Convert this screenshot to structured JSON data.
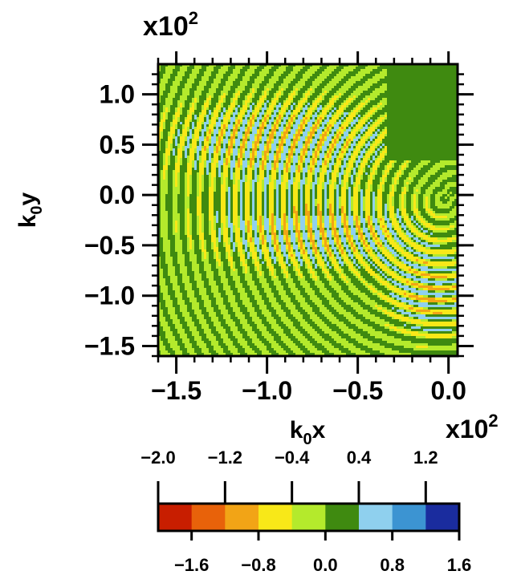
{
  "chart_data": {
    "type": "heatmap",
    "x_multiplier": "x10",
    "x_multiplier_exp": "2",
    "y_multiplier": "x10",
    "y_multiplier_exp": "2",
    "x_axis": {
      "label_main": "k",
      "label_sub": "0",
      "label_tail": "x",
      "range": [
        -1.6,
        0.05
      ],
      "ticks": [
        -1.5,
        -1.0,
        -0.5,
        0.0
      ],
      "tick_labels": [
        "−1.5",
        "−1.0",
        "−0.5",
        "0.0"
      ]
    },
    "y_axis": {
      "label_main": "k",
      "label_sub": "0",
      "label_tail": "y",
      "range": [
        -1.6,
        1.3
      ],
      "ticks": [
        1.0,
        0.5,
        0.0,
        -0.5,
        -1.0,
        -1.5
      ],
      "tick_labels": [
        "1.0",
        "0.5",
        "0.0",
        "−0.5",
        "−1.0",
        "−1.5"
      ]
    },
    "colorbar": {
      "levels": [
        -2.0,
        -1.6,
        -1.2,
        -0.8,
        -0.4,
        0.0,
        0.4,
        0.8,
        1.2,
        1.6
      ],
      "colors": [
        "#c81e00",
        "#e8620a",
        "#f2a416",
        "#f8e818",
        "#b4ea2c",
        "#3f8a10",
        "#8fd0ee",
        "#3c94d2",
        "#1a2c9e"
      ],
      "top_labels": [
        "−2.0",
        "−1.2",
        "−0.4",
        "0.4",
        "1.2"
      ],
      "bottom_labels": [
        "−1.6",
        "−0.8",
        "0.0",
        "0.8",
        "1.6"
      ]
    },
    "field_description": "interference fringe pattern, concentric arcs centered near (0, 0) with amplitude peaking along the ±0.3 diagonals",
    "fill_color": "#3f8a10",
    "background_color": "#b4ea2c"
  }
}
